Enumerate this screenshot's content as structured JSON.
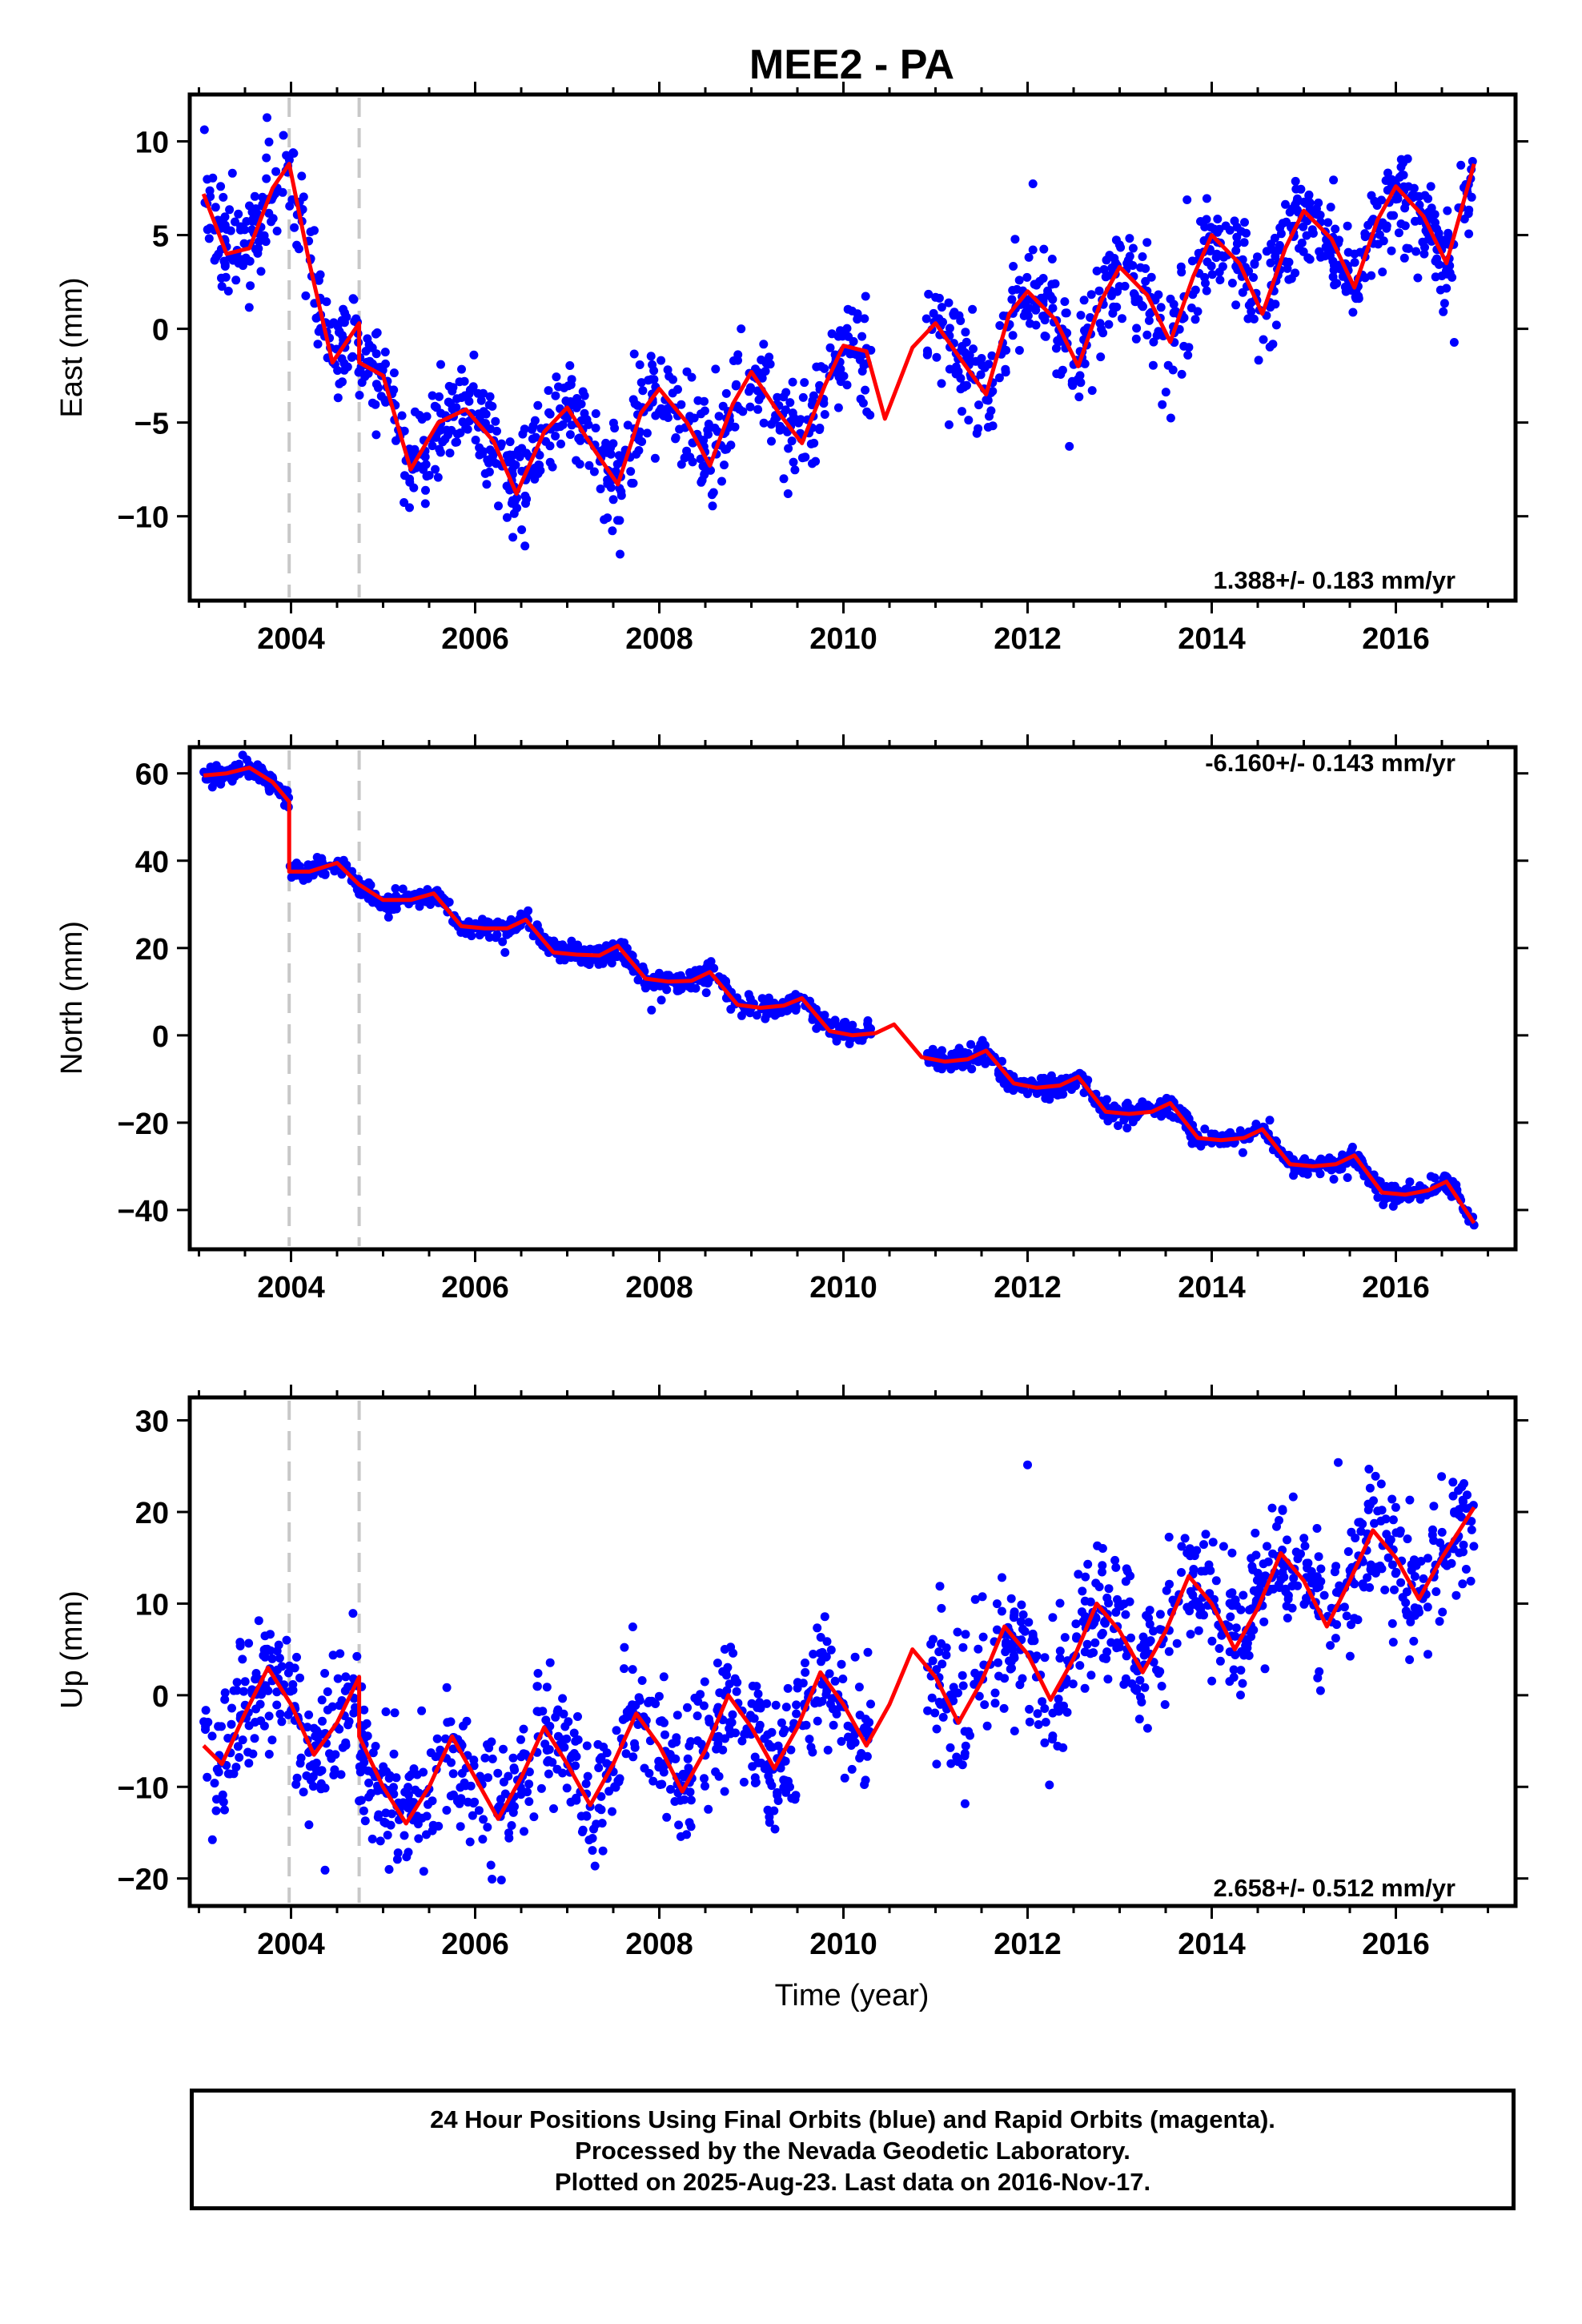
{
  "title": "MEE2 - PA",
  "xlabel": "Time (year)",
  "footer": {
    "line1": "24 Hour Positions Using Final Orbits (blue) and Rapid Orbits (magenta).",
    "line2": "Processed by the Nevada Geodetic Laboratory.",
    "line3": "Plotted on 2025-Aug-23. Last data on 2016-Nov-17."
  },
  "colors": {
    "data": "#0000ff",
    "model": "#ff0000",
    "offsets": "#c8c8c8"
  },
  "chart_data": [
    {
      "type": "scatter",
      "panel": "east",
      "ylabel": "East (mm)",
      "rate_label": "1.388+/- 0.183 mm/yr",
      "xlim": [
        2002.9,
        2017.3
      ],
      "ylim": [
        -14.5,
        12.5
      ],
      "xticks": [
        2004,
        2006,
        2008,
        2010,
        2012,
        2014,
        2016
      ],
      "yticks": [
        -10,
        -5,
        0,
        5,
        10
      ],
      "offsets": [
        2003.98,
        2004.74
      ],
      "grid": false,
      "series": [
        {
          "name": "24 Hour Positions",
          "kind": "scatter"
        },
        {
          "name": "Model",
          "kind": "line",
          "x": [
            2003.05,
            2003.3,
            2003.55,
            2003.8,
            2003.98,
            2004.2,
            2004.45,
            2004.74,
            2004.74,
            2005.0,
            2005.3,
            2005.6,
            2005.9,
            2006.2,
            2006.45,
            2006.75,
            2007.0,
            2007.3,
            2007.55,
            2007.8,
            2008.0,
            2008.3,
            2008.55,
            2008.8,
            2009.0,
            2009.3,
            2009.55,
            2009.8,
            2010.0,
            2010.25,
            2010.45,
            2010.75,
            2011.0,
            2011.3,
            2011.55,
            2011.8,
            2012.0,
            2012.3,
            2012.55,
            2012.8,
            2013.0,
            2013.3,
            2013.55,
            2013.8,
            2014.0,
            2014.3,
            2014.55,
            2014.8,
            2015.0,
            2015.3,
            2015.55,
            2015.8,
            2016.0,
            2016.3,
            2016.55,
            2016.85
          ],
          "y": [
            7.2,
            4.0,
            4.3,
            7.5,
            8.8,
            3.5,
            -1.8,
            0.3,
            -1.8,
            -2.5,
            -7.5,
            -5.0,
            -4.3,
            -6.0,
            -8.8,
            -5.5,
            -4.2,
            -6.5,
            -8.3,
            -4.5,
            -3.2,
            -5.0,
            -7.3,
            -4.0,
            -2.3,
            -4.5,
            -6.1,
            -3.0,
            -0.9,
            -1.2,
            -4.8,
            -1.0,
            0.3,
            -1.8,
            -3.5,
            0.8,
            2.0,
            0.5,
            -2.0,
            1.5,
            3.3,
            1.8,
            -0.7,
            2.8,
            5.0,
            3.5,
            0.8,
            4.3,
            6.3,
            4.8,
            2.2,
            5.8,
            7.6,
            6.0,
            3.5,
            8.8
          ]
        }
      ]
    },
    {
      "type": "scatter",
      "panel": "north",
      "ylabel": "North (mm)",
      "rate_label": "-6.160+/- 0.143 mm/yr",
      "xlim": [
        2002.9,
        2017.3
      ],
      "ylim": [
        -49,
        66
      ],
      "xticks": [
        2004,
        2006,
        2008,
        2010,
        2012,
        2014,
        2016
      ],
      "yticks": [
        -40,
        -20,
        0,
        20,
        40,
        60
      ],
      "offsets": [
        2003.98,
        2004.74
      ],
      "grid": false,
      "series": [
        {
          "name": "24 Hour Positions",
          "kind": "scatter"
        },
        {
          "name": "Model",
          "kind": "line",
          "x": [
            2003.05,
            2003.3,
            2003.55,
            2003.8,
            2003.98,
            2003.98,
            2004.2,
            2004.5,
            2004.74,
            2005.0,
            2005.3,
            2005.55,
            2005.85,
            2006.1,
            2006.35,
            2006.55,
            2006.85,
            2007.1,
            2007.35,
            2007.55,
            2007.85,
            2008.1,
            2008.35,
            2008.55,
            2008.85,
            2009.1,
            2009.35,
            2009.55,
            2009.85,
            2010.1,
            2010.35,
            2010.55,
            2010.85,
            2011.1,
            2011.35,
            2011.55,
            2011.85,
            2012.1,
            2012.35,
            2012.55,
            2012.85,
            2013.1,
            2013.35,
            2013.55,
            2013.85,
            2014.1,
            2014.35,
            2014.55,
            2014.85,
            2015.1,
            2015.35,
            2015.55,
            2015.85,
            2016.1,
            2016.35,
            2016.55,
            2016.85
          ],
          "y": [
            59.5,
            60.0,
            61.3,
            58.0,
            53.5,
            37.5,
            37.5,
            39.5,
            34.5,
            31.0,
            31.0,
            32.5,
            25.0,
            24.5,
            24.5,
            26.5,
            19.0,
            18.5,
            18.3,
            20.5,
            13.0,
            12.3,
            12.5,
            14.5,
            7.0,
            6.3,
            6.8,
            8.5,
            1.0,
            0.0,
            0.5,
            2.5,
            -5.0,
            -6.0,
            -5.5,
            -3.5,
            -11.0,
            -12.0,
            -11.5,
            -9.5,
            -17.5,
            -18.0,
            -17.5,
            -15.5,
            -23.5,
            -24.0,
            -23.5,
            -21.5,
            -29.5,
            -30.0,
            -29.5,
            -27.5,
            -36.0,
            -36.5,
            -35.5,
            -33.5,
            -43.0
          ]
        }
      ]
    },
    {
      "type": "scatter",
      "panel": "up",
      "ylabel": "Up (mm)",
      "rate_label": "2.658+/- 0.512 mm/yr",
      "xlim": [
        2002.9,
        2017.3
      ],
      "ylim": [
        -23,
        32.5
      ],
      "xticks": [
        2004,
        2006,
        2008,
        2010,
        2012,
        2014,
        2016
      ],
      "yticks": [
        -20,
        -10,
        0,
        10,
        20,
        30
      ],
      "offsets": [
        2003.98,
        2004.74
      ],
      "grid": false,
      "series": [
        {
          "name": "24 Hour Positions",
          "kind": "scatter"
        },
        {
          "name": "Model",
          "kind": "line",
          "x": [
            2003.05,
            2003.25,
            2003.5,
            2003.75,
            2004.0,
            2004.25,
            2004.5,
            2004.74,
            2004.74,
            2005.0,
            2005.25,
            2005.5,
            2005.75,
            2006.0,
            2006.25,
            2006.5,
            2006.75,
            2007.0,
            2007.25,
            2007.5,
            2007.75,
            2008.0,
            2008.25,
            2008.5,
            2008.75,
            2009.0,
            2009.25,
            2009.5,
            2009.75,
            2010.0,
            2010.25,
            2010.5,
            2010.75,
            2011.0,
            2011.25,
            2011.5,
            2011.75,
            2012.0,
            2012.25,
            2012.5,
            2012.75,
            2013.0,
            2013.25,
            2013.5,
            2013.75,
            2014.0,
            2014.25,
            2014.5,
            2014.75,
            2015.0,
            2015.25,
            2015.5,
            2015.75,
            2016.0,
            2016.25,
            2016.5,
            2016.85
          ],
          "y": [
            -5.5,
            -7.5,
            -2.0,
            3.0,
            -1.0,
            -6.5,
            -3.0,
            2.0,
            -4.5,
            -10.0,
            -14.0,
            -10.0,
            -4.5,
            -9.0,
            -13.5,
            -9.0,
            -3.5,
            -7.5,
            -12.0,
            -7.5,
            -2.0,
            -5.5,
            -10.5,
            -6.0,
            0.0,
            -3.5,
            -8.0,
            -3.5,
            2.5,
            -1.0,
            -5.5,
            -1.0,
            5.0,
            2.0,
            -3.0,
            1.5,
            7.5,
            4.5,
            -0.5,
            4.0,
            10.0,
            7.0,
            2.5,
            7.0,
            13.0,
            10.0,
            5.0,
            9.5,
            15.5,
            12.5,
            7.5,
            12.5,
            18.0,
            15.0,
            10.5,
            15.0,
            20.5
          ]
        }
      ]
    }
  ]
}
